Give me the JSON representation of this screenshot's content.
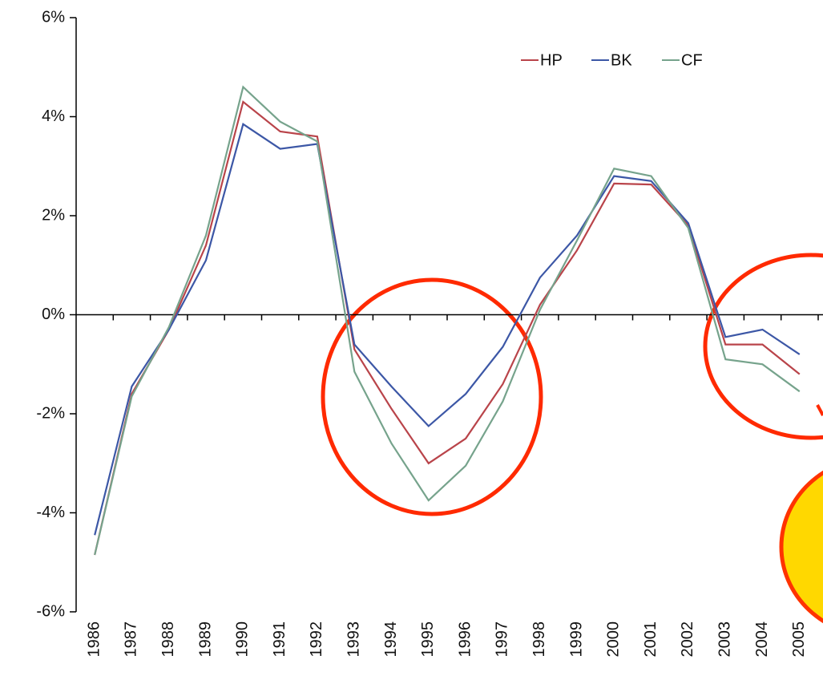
{
  "chart_data": {
    "type": "line",
    "categories": [
      "1986",
      "1987",
      "1988",
      "1989",
      "1990",
      "1991",
      "1992",
      "1993",
      "1994",
      "1995",
      "1996",
      "1997",
      "1998",
      "1999",
      "2000",
      "2001",
      "2002",
      "2003",
      "2004",
      "2005"
    ],
    "series": [
      {
        "name": "HP",
        "color": "#b9444a",
        "values": [
          -4.85,
          -1.6,
          -0.3,
          1.4,
          4.3,
          3.7,
          3.6,
          -0.7,
          -1.9,
          -3.0,
          -2.5,
          -1.4,
          0.2,
          1.3,
          2.65,
          2.63,
          1.8,
          -0.6,
          -0.6,
          -1.2
        ]
      },
      {
        "name": "BK",
        "color": "#3c57a6",
        "values": [
          -4.45,
          -1.45,
          -0.3,
          1.1,
          3.85,
          3.35,
          3.45,
          -0.6,
          -1.45,
          -2.25,
          -1.6,
          -0.65,
          0.75,
          1.6,
          2.8,
          2.7,
          1.85,
          -0.45,
          -0.3,
          -0.8
        ]
      },
      {
        "name": "CF",
        "color": "#76a38c",
        "values": [
          -4.85,
          -1.65,
          -0.25,
          1.6,
          4.6,
          3.9,
          3.5,
          -1.15,
          -2.6,
          -3.75,
          -3.05,
          -1.75,
          0.1,
          1.5,
          2.95,
          2.8,
          1.75,
          -0.9,
          -1.0,
          -1.55
        ]
      }
    ],
    "ylim": [
      -6,
      6
    ],
    "yticks": [
      {
        "value": -6,
        "label": "-6%"
      },
      {
        "value": -4,
        "label": "-4%"
      },
      {
        "value": -2,
        "label": "-2%"
      },
      {
        "value": 0,
        "label": "0%"
      },
      {
        "value": 2,
        "label": "2%"
      },
      {
        "value": 4,
        "label": "4%"
      },
      {
        "value": 6,
        "label": "6%"
      }
    ],
    "legend": "upper right",
    "grid": false
  }
}
